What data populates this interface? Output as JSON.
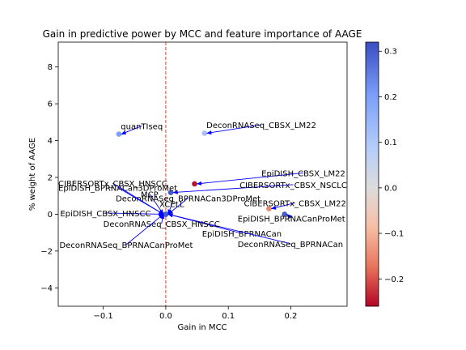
{
  "chart_data": {
    "type": "scatter",
    "title": "Gain in predictive power by MCC and feature importance of AAGE",
    "xlabel": "Gain in MCC",
    "ylabel": "% weight of AAGE",
    "xlim": [
      -0.172,
      0.29
    ],
    "ylim": [
      -5.0,
      9.35
    ],
    "xticks": [
      -0.1,
      0.0,
      0.1,
      0.2
    ],
    "xtick_labels": [
      "−0.1",
      "0.0",
      "0.1",
      "0.2"
    ],
    "yticks": [
      -4,
      -2,
      0,
      2,
      4,
      6,
      8
    ],
    "ytick_labels": [
      "−4",
      "−2",
      "0",
      "2",
      "4",
      "6",
      "8"
    ],
    "vline": {
      "x": 0.0,
      "color": "#d6452e",
      "style": "dashed"
    },
    "colorbar": {
      "cmap": "coolwarm_r",
      "vmin": -0.26,
      "vmax": 0.32,
      "ticks": [
        0.3,
        0.2,
        0.1,
        0.0,
        -0.1,
        -0.2
      ],
      "tick_labels": [
        "0.3",
        "0.2",
        "0.1",
        "0.0",
        "−0.1",
        "−0.2"
      ]
    },
    "points": [
      {
        "label": "quanTIseq",
        "x": -0.075,
        "y": 4.35,
        "c": 0.2,
        "tx": -0.072,
        "ty": 4.62
      },
      {
        "label": "DeconRNASeq_CBSX_LM22",
        "x": 0.062,
        "y": 4.4,
        "c": 0.12,
        "tx": 0.065,
        "ty": 4.68
      },
      {
        "label": "EpiDISH_CBSX_LM22",
        "x": 0.046,
        "y": 1.65,
        "c": -0.25,
        "tx": 0.153,
        "ty": 2.07
      },
      {
        "label": "CIBERSORTx_CBSX_NSCLC",
        "x": 0.008,
        "y": 1.18,
        "c": 0.3,
        "tx": 0.118,
        "ty": 1.43
      },
      {
        "label": "CIBERSORTx_CBSX_LM22",
        "x": 0.165,
        "y": 0.3,
        "c": -0.15,
        "tx": 0.125,
        "ty": 0.44
      },
      {
        "label": "EpiDISH_BPRNACanProMet",
        "x": 0.19,
        "y": 0.0,
        "c": 0.3,
        "tx": 0.115,
        "ty": -0.39
      },
      {
        "label": "EpiDISH_BPRNACan",
        "x": 0.0,
        "y": 0.0,
        "c": 0.3,
        "tx": 0.058,
        "ty": -1.22
      },
      {
        "label": "DeconRNASeq_BPRNACan",
        "x": 0.0,
        "y": 0.0,
        "c": 0.3,
        "tx": 0.115,
        "ty": -1.78
      },
      {
        "label": "DeconRNASeq_CBSX_HNSCC",
        "x": 0.0,
        "y": 0.0,
        "c": 0.3,
        "tx": -0.1,
        "ty": -0.69
      },
      {
        "label": "DeconRNASeq_BPRNACanProMet",
        "x": 0.0,
        "y": 0.0,
        "c": 0.3,
        "tx": -0.17,
        "ty": -1.83
      },
      {
        "label": "EpiDISH_CBSX_HNSCC",
        "x": 0.0,
        "y": 0.0,
        "c": 0.3,
        "tx": -0.169,
        "ty": -0.11
      },
      {
        "label": "XCELL",
        "x": 0.0,
        "y": 0.0,
        "c": 0.3,
        "tx": -0.01,
        "ty": 0.39
      },
      {
        "label": "MCP",
        "x": 0.0,
        "y": 0.0,
        "c": 0.3,
        "tx": -0.04,
        "ty": 0.93
      },
      {
        "label": "DeconRNASeq_BPRNACan3DProMet",
        "x": 0.0,
        "y": 0.0,
        "c": 0.3,
        "tx": -0.08,
        "ty": 0.71
      },
      {
        "label": "EpiDISH_BPRNACan3DProMet",
        "x": 0.0,
        "y": 0.0,
        "c": 0.3,
        "tx": -0.172,
        "ty": 1.28
      },
      {
        "label": "CIBERSORTx_CBSX_HNSCC",
        "x": 0.0,
        "y": 0.0,
        "c": 0.3,
        "tx": -0.172,
        "ty": 1.51
      }
    ]
  }
}
